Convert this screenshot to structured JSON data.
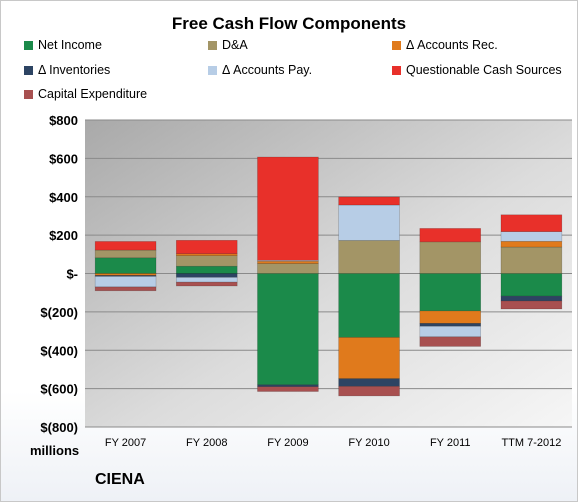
{
  "title": "Free Cash Flow Components",
  "units_label": "millions",
  "company": "CIENA",
  "colors": {
    "net_income": "#1b8a4a",
    "da": "#a39566",
    "accounts_rec": "#e07a1c",
    "inventories": "#2d4463",
    "accounts_pay": "#b7cde6",
    "questionable": "#e8302a",
    "capex": "#a85050"
  },
  "chart_data": {
    "type": "bar",
    "stacked": true,
    "title": "Free Cash Flow Components",
    "ylim": [
      -800,
      800
    ],
    "y_ticks": [
      800,
      600,
      400,
      200,
      0,
      -200,
      -400,
      -600,
      -800
    ],
    "y_tick_labels": [
      "$800",
      "$600",
      "$400",
      "$200",
      "$-",
      "$(200)",
      "$(400)",
      "$(600)",
      "$(800)"
    ],
    "grid": true,
    "legend_position": "top",
    "categories": [
      "FY 2007",
      "FY 2008",
      "FY 2009",
      "FY 2010",
      "FY 2011",
      "TTM 7-2012"
    ],
    "series": [
      {
        "name": "Net Income",
        "key": "net_income",
        "values": [
          82,
          38,
          -580,
          -333,
          -195,
          -118
        ]
      },
      {
        "name": "D&A",
        "key": "da",
        "values": [
          40,
          55,
          52,
          172,
          165,
          138
        ]
      },
      {
        "name": "Δ Accounts Rec.",
        "key": "accounts_rec",
        "values": [
          -10,
          10,
          12,
          -215,
          -65,
          30
        ]
      },
      {
        "name": "Δ Inventories",
        "key": "inventories",
        "values": [
          -5,
          -20,
          -10,
          -40,
          -15,
          -25
        ]
      },
      {
        "name": "Δ Accounts Pay.",
        "key": "accounts_pay",
        "values": [
          -55,
          -25,
          5,
          185,
          -55,
          50
        ]
      },
      {
        "name": "Questionable Cash Sources",
        "key": "questionable",
        "values": [
          45,
          70,
          538,
          42,
          70,
          88
        ]
      },
      {
        "name": "Capital Expenditure",
        "key": "capex",
        "values": [
          -20,
          -20,
          -25,
          -50,
          -50,
          -42
        ]
      }
    ]
  }
}
